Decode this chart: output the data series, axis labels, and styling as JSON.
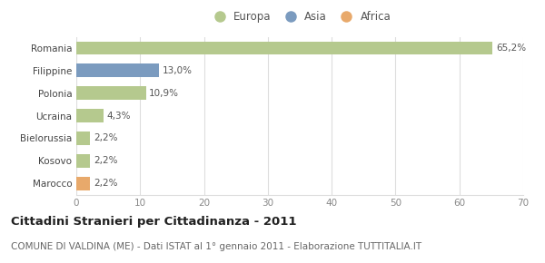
{
  "categories": [
    "Romania",
    "Filippine",
    "Polonia",
    "Ucraina",
    "Bielorussia",
    "Kosovo",
    "Marocco"
  ],
  "values": [
    65.2,
    13.0,
    10.9,
    4.3,
    2.2,
    2.2,
    2.2
  ],
  "labels": [
    "65,2%",
    "13,0%",
    "10,9%",
    "4,3%",
    "2,2%",
    "2,2%",
    "2,2%"
  ],
  "colors": [
    "#b5c98e",
    "#7b9bbf",
    "#b5c98e",
    "#b5c98e",
    "#b5c98e",
    "#b5c98e",
    "#e8a96b"
  ],
  "legend_labels": [
    "Europa",
    "Asia",
    "Africa"
  ],
  "legend_colors": [
    "#b5c98e",
    "#7b9bbf",
    "#e8a96b"
  ],
  "xlim": [
    0,
    70
  ],
  "xticks": [
    0,
    10,
    20,
    30,
    40,
    50,
    60,
    70
  ],
  "title": "Cittadini Stranieri per Cittadinanza - 2011",
  "subtitle": "COMUNE DI VALDINA (ME) - Dati ISTAT al 1° gennaio 2011 - Elaborazione TUTTITALIA.IT",
  "bg_color": "#ffffff",
  "grid_color": "#dddddd",
  "bar_height": 0.6,
  "title_fontsize": 9.5,
  "subtitle_fontsize": 7.5,
  "label_fontsize": 7.5,
  "tick_fontsize": 7.5,
  "legend_fontsize": 8.5
}
